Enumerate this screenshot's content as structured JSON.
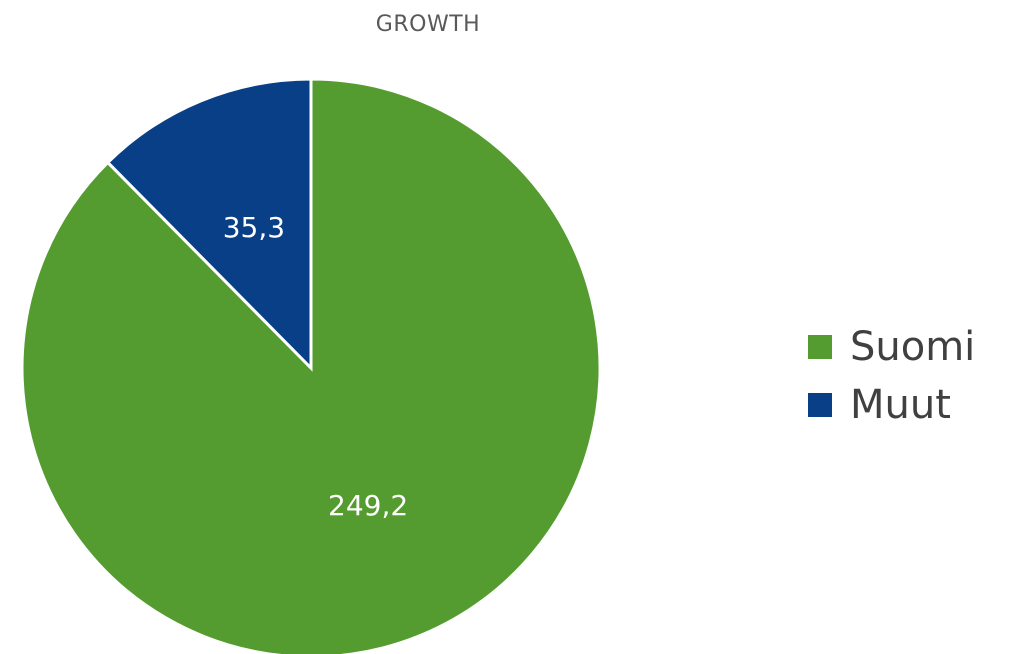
{
  "chart_data": {
    "type": "pie",
    "title": "GROWTH",
    "categories": [
      "Suomi",
      "Muut"
    ],
    "values": [
      249.2,
      35.3
    ],
    "value_labels": [
      "249,2",
      "35,3"
    ],
    "colors": [
      "#559c30",
      "#083f86"
    ],
    "start_angle": "12 o'clock",
    "direction": "clockwise",
    "legend_position": "right"
  }
}
